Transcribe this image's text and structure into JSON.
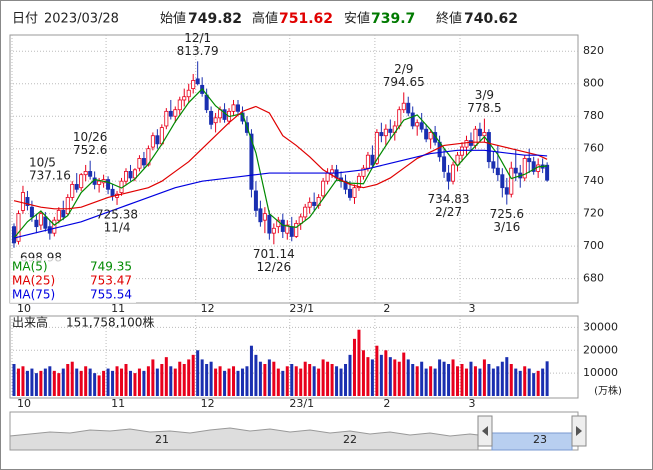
{
  "header": {
    "date_label": "日付",
    "date": "2023/03/28",
    "open_label": "始値",
    "high_label": "高値",
    "low_label": "安値",
    "close_label": "終値"
  },
  "chart_data": [
    {
      "type": "candlestick",
      "ohlc": [
        [
          712,
          714,
          698.98,
          702
        ],
        [
          703,
          722,
          701,
          720
        ],
        [
          722,
          737.16,
          720,
          733
        ],
        [
          730,
          734,
          722,
          725
        ],
        [
          724,
          728,
          715,
          718
        ],
        [
          716,
          720,
          708,
          712
        ],
        [
          713,
          722,
          710,
          720
        ],
        [
          718,
          721,
          709,
          711
        ],
        [
          712,
          716,
          704,
          708
        ],
        [
          708,
          718,
          706,
          716
        ],
        [
          716,
          724,
          714,
          722
        ],
        [
          722,
          728,
          716,
          718
        ],
        [
          720,
          732,
          719,
          730
        ],
        [
          730,
          740,
          728,
          738
        ],
        [
          738,
          745,
          733,
          735
        ],
        [
          736,
          745,
          734,
          744
        ],
        [
          744,
          750,
          740,
          746
        ],
        [
          746,
          752.6,
          741,
          743
        ],
        [
          742,
          746,
          735,
          738
        ],
        [
          738,
          742,
          733,
          740
        ],
        [
          739,
          744,
          736,
          741
        ],
        [
          741,
          743,
          732,
          735
        ],
        [
          735,
          738,
          728,
          731
        ],
        [
          730,
          734,
          725.38,
          732
        ],
        [
          733,
          742,
          731,
          740
        ],
        [
          740,
          748,
          738,
          746
        ],
        [
          746,
          750,
          740,
          742
        ],
        [
          742,
          748,
          740,
          747
        ],
        [
          748,
          756,
          746,
          754
        ],
        [
          754,
          758,
          748,
          750
        ],
        [
          750,
          762,
          749,
          760
        ],
        [
          761,
          770,
          759,
          768
        ],
        [
          768,
          772,
          760,
          763
        ],
        [
          763,
          775,
          762,
          773
        ],
        [
          774,
          785,
          772,
          783
        ],
        [
          783,
          790,
          778,
          780
        ],
        [
          780,
          786,
          776,
          784
        ],
        [
          784,
          792,
          781,
          790
        ],
        [
          790,
          797,
          786,
          792
        ],
        [
          792,
          800,
          788,
          796
        ],
        [
          797,
          806,
          794,
          802
        ],
        [
          803,
          813.79,
          799,
          800
        ],
        [
          799,
          804,
          792,
          794
        ],
        [
          793,
          797,
          782,
          784
        ],
        [
          783,
          786,
          772,
          775
        ],
        [
          776,
          782,
          770,
          779
        ],
        [
          779,
          786,
          776,
          784
        ],
        [
          784,
          788,
          776,
          778
        ],
        [
          777,
          785,
          775,
          783
        ],
        [
          783,
          790,
          780,
          787
        ],
        [
          787,
          790,
          781,
          783
        ],
        [
          782,
          786,
          775,
          777
        ],
        [
          776,
          780,
          768,
          770
        ],
        [
          769,
          772,
          730,
          735
        ],
        [
          734,
          740,
          718,
          722
        ],
        [
          723,
          728,
          712,
          715
        ],
        [
          716,
          724,
          708,
          720
        ],
        [
          719,
          722,
          704,
          708
        ],
        [
          708,
          714,
          701.14,
          711
        ],
        [
          712,
          718,
          708,
          716
        ],
        [
          716,
          720,
          705,
          709
        ],
        [
          708,
          716,
          704,
          713
        ],
        [
          712,
          718,
          703,
          706
        ],
        [
          706,
          716,
          705,
          714
        ],
        [
          714,
          720,
          710,
          718
        ],
        [
          718,
          726,
          716,
          724
        ],
        [
          724,
          730,
          720,
          727
        ],
        [
          727,
          733,
          722,
          725
        ],
        [
          725,
          732,
          723,
          730
        ],
        [
          731,
          742,
          729,
          740
        ],
        [
          740,
          748,
          738,
          745
        ],
        [
          745,
          750,
          742,
          747
        ],
        [
          747,
          750,
          740,
          742
        ],
        [
          742,
          746,
          736,
          740
        ],
        [
          740,
          744,
          732,
          735
        ],
        [
          735,
          740,
          728,
          730
        ],
        [
          730,
          738,
          726,
          736
        ],
        [
          736,
          745,
          734,
          743
        ],
        [
          743,
          750,
          741,
          748
        ],
        [
          748,
          758,
          746,
          756
        ],
        [
          756,
          762,
          748,
          750
        ],
        [
          751,
          772,
          750,
          770
        ],
        [
          770,
          776,
          764,
          768
        ],
        [
          768,
          775,
          762,
          772
        ],
        [
          772,
          778,
          766,
          770
        ],
        [
          770,
          777,
          765,
          774
        ],
        [
          774,
          786,
          772,
          784
        ],
        [
          784,
          794.65,
          782,
          788
        ],
        [
          788,
          792,
          780,
          782
        ],
        [
          782,
          786,
          772,
          774
        ],
        [
          774,
          778,
          768,
          776
        ],
        [
          776,
          782,
          770,
          772
        ],
        [
          772,
          775,
          764,
          766
        ],
        [
          766,
          772,
          760,
          770
        ],
        [
          770,
          774,
          762,
          764
        ],
        [
          764,
          768,
          752,
          755
        ],
        [
          755,
          760,
          742,
          746
        ],
        [
          745,
          750,
          734.83,
          740
        ],
        [
          740,
          752,
          738,
          750
        ],
        [
          750,
          758,
          746,
          756
        ],
        [
          756,
          764,
          752,
          761
        ],
        [
          761,
          768,
          756,
          765
        ],
        [
          765,
          770,
          758,
          762
        ],
        [
          762,
          774,
          760,
          772
        ],
        [
          772,
          776,
          765,
          768
        ],
        [
          768,
          778.5,
          764,
          770
        ],
        [
          770,
          772,
          748,
          752
        ],
        [
          752,
          758,
          745,
          748
        ],
        [
          748,
          762,
          740,
          744
        ],
        [
          744,
          748,
          730,
          736
        ],
        [
          736,
          742,
          725.6,
          732
        ],
        [
          732,
          752,
          730,
          748
        ],
        [
          748,
          760,
          740,
          745
        ],
        [
          745,
          750,
          736,
          742
        ],
        [
          742,
          756,
          740,
          754
        ],
        [
          754,
          760,
          745,
          752
        ],
        [
          752,
          755,
          744,
          746
        ],
        [
          746,
          754,
          742,
          750
        ],
        [
          750,
          754,
          745,
          748
        ],
        [
          749.82,
          751.62,
          739.7,
          740.62
        ]
      ],
      "up_color": "#e8001c",
      "down_color": "#1a2fb0",
      "ylim": [
        665,
        830
      ],
      "yticks": [
        680,
        700,
        720,
        740,
        760,
        780,
        800,
        820
      ],
      "grid": true,
      "xticks": [
        {
          "value": 0,
          "label": "10"
        },
        {
          "value": 21,
          "label": "11"
        },
        {
          "value": 41,
          "label": "12"
        },
        {
          "value": 62,
          "label": "23/1"
        },
        {
          "value": 81,
          "label": "2"
        },
        {
          "value": 100,
          "label": "3"
        }
      ],
      "series": [
        {
          "name": "MA(5)",
          "color": "#008a00",
          "x": [
            0,
            3,
            6,
            9,
            12,
            15,
            18,
            21,
            24,
            27,
            30,
            33,
            36,
            39,
            42,
            45,
            48,
            51,
            54,
            57,
            60,
            63,
            66,
            69,
            72,
            75,
            78,
            81,
            84,
            87,
            90,
            93,
            96,
            99,
            102,
            105,
            108,
            111,
            114,
            117,
            119
          ],
          "values": [
            705,
            715,
            721.6,
            713,
            718.8,
            733,
            741,
            739.4,
            735.8,
            741.4,
            750.6,
            762.8,
            776.6,
            788.4,
            796.8,
            786.4,
            779.8,
            781.6,
            757.4,
            720,
            712.8,
            711.6,
            717.8,
            729.2,
            740.8,
            738.8,
            738.4,
            753.4,
            766,
            777.6,
            780.8,
            771.6,
            760.2,
            749.4,
            758.8,
            767.4,
            756.4,
            741.6,
            744.2,
            748.8,
            749.35
          ]
        },
        {
          "name": "MA(25)",
          "color": "#e00000",
          "x": [
            0,
            3,
            6,
            9,
            12,
            15,
            18,
            21,
            24,
            27,
            30,
            33,
            36,
            39,
            42,
            45,
            48,
            51,
            54,
            57,
            60,
            63,
            66,
            69,
            72,
            75,
            78,
            81,
            84,
            87,
            90,
            93,
            96,
            99,
            102,
            105,
            108,
            111,
            114,
            117,
            119
          ],
          "values": [
            728,
            726,
            724,
            723,
            723,
            724,
            727,
            730,
            732,
            734,
            736,
            740,
            746,
            752,
            760,
            768,
            776,
            783,
            786,
            782,
            768,
            762,
            755,
            747,
            742,
            738,
            736,
            738,
            742,
            748,
            754,
            758,
            762,
            763,
            764,
            764,
            762,
            760,
            758,
            756,
            753.47
          ]
        },
        {
          "name": "MA(75)",
          "color": "#0000e0",
          "x": [
            0,
            3,
            6,
            9,
            12,
            15,
            18,
            21,
            24,
            27,
            30,
            33,
            36,
            39,
            42,
            45,
            48,
            51,
            54,
            57,
            60,
            63,
            66,
            69,
            72,
            75,
            78,
            81,
            84,
            87,
            90,
            93,
            96,
            99,
            102,
            105,
            108,
            111,
            114,
            117,
            119
          ],
          "values": [
            705,
            707,
            709,
            711,
            713,
            715,
            718,
            721,
            724,
            727,
            730,
            733,
            736,
            738,
            740,
            741,
            742,
            743,
            744,
            745,
            745,
            745,
            745,
            745,
            745,
            746,
            747,
            749,
            751,
            753,
            755,
            757,
            758,
            759,
            759,
            759,
            758,
            757,
            756,
            756,
            755.54
          ]
        }
      ],
      "annotations": [
        {
          "label": "10/5",
          "x": 2,
          "field": 1
        },
        {
          "x": 0,
          "field": 2
        },
        {
          "label": "10/26",
          "x": 17,
          "field": 1
        },
        {
          "label": "11/4",
          "x": 23,
          "field": 2
        },
        {
          "label": "12/1",
          "x": 41,
          "field": 1
        },
        {
          "label": "12/26",
          "x": 58,
          "field": 2
        },
        {
          "label": "2/9",
          "x": 87,
          "field": 1
        },
        {
          "label": "2/27",
          "x": 97,
          "field": 2
        },
        {
          "label": "3/9",
          "x": 105,
          "field": 1
        },
        {
          "label": "3/16",
          "x": 110,
          "field": 2
        }
      ]
    },
    {
      "type": "bar",
      "title": "出来高",
      "total_label": "151,758,100株",
      "unit": "(万株)",
      "values": [
        14000,
        12000,
        13000,
        11000,
        12000,
        10000,
        11000,
        12000,
        13000,
        11000,
        10000,
        12000,
        14000,
        15000,
        12000,
        11000,
        13000,
        12000,
        10000,
        9000,
        11000,
        12000,
        11000,
        13000,
        12000,
        14000,
        11000,
        10000,
        12000,
        11000,
        13000,
        16000,
        12000,
        14000,
        17000,
        13000,
        12000,
        15000,
        14000,
        16000,
        18000,
        20000,
        16000,
        14000,
        15000,
        12000,
        13000,
        11000,
        12000,
        13000,
        11000,
        12000,
        13000,
        22000,
        18000,
        15000,
        14000,
        16000,
        15000,
        12000,
        11000,
        13000,
        14000,
        13000,
        12000,
        15000,
        14000,
        13000,
        12000,
        16000,
        15000,
        14000,
        13000,
        12000,
        14000,
        18000,
        25000,
        29000,
        20000,
        17000,
        16000,
        22000,
        18000,
        20000,
        17000,
        16000,
        15000,
        19000,
        16000,
        14000,
        13000,
        15000,
        12000,
        13000,
        12000,
        16000,
        15000,
        14000,
        16000,
        13000,
        14000,
        12000,
        15000,
        13000,
        12000,
        16000,
        14000,
        12000,
        13000,
        15000,
        17000,
        14000,
        12000,
        11000,
        13000,
        12000,
        10000,
        11000,
        12000,
        15175.81
      ],
      "ylim": [
        0,
        35000
      ],
      "yticks": [
        10000,
        20000,
        30000
      ],
      "grid": true
    }
  ],
  "navigator": {
    "labels": [
      "21",
      "22",
      "23"
    ]
  }
}
